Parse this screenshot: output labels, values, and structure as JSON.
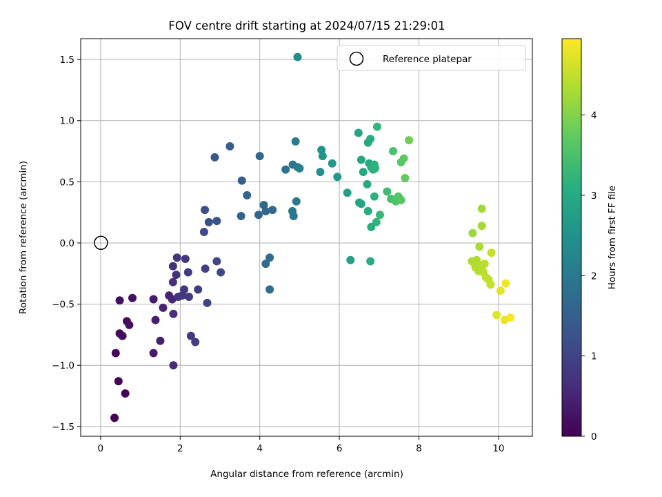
{
  "chart_data": {
    "type": "scatter",
    "title": "FOV centre drift starting at 2024/07/15 21:29:01",
    "xlabel": "Angular distance from reference (arcmin)",
    "ylabel": "Rotation from reference (arcmin)",
    "xlim": [
      -0.5,
      10.85
    ],
    "ylim": [
      -1.58,
      1.67
    ],
    "xticks": [
      0,
      2,
      4,
      6,
      8,
      10
    ],
    "yticks": [
      -1.5,
      -1.0,
      -0.5,
      0.0,
      0.5,
      1.0,
      1.5
    ],
    "xtick_labels": [
      "0",
      "2",
      "4",
      "6",
      "8",
      "10"
    ],
    "ytick_labels": [
      "−1.5",
      "−1.0",
      "−0.5",
      "0.0",
      "0.5",
      "1.0",
      "1.5"
    ],
    "grid": true,
    "legend_position": "top-right",
    "reference": {
      "label": "Reference platepar",
      "x": 0,
      "y": 0
    },
    "colorbar": {
      "label": "Hours from first FF file",
      "colormap": "viridis",
      "range": [
        0,
        4.95
      ],
      "ticks": [
        0,
        1,
        2,
        3,
        4
      ],
      "tick_labels": [
        "0",
        "1",
        "2",
        "3",
        "4"
      ]
    },
    "points": [
      {
        "x": 0.35,
        "y": -1.43,
        "t": 0.02
      },
      {
        "x": 0.62,
        "y": -1.23,
        "t": 0.05
      },
      {
        "x": 0.45,
        "y": -1.13,
        "t": 0.08
      },
      {
        "x": 0.38,
        "y": -0.9,
        "t": 0.1
      },
      {
        "x": 0.48,
        "y": -0.74,
        "t": 0.12
      },
      {
        "x": 0.55,
        "y": -0.76,
        "t": 0.14
      },
      {
        "x": 0.66,
        "y": -0.64,
        "t": 0.16
      },
      {
        "x": 0.72,
        "y": -0.67,
        "t": 0.18
      },
      {
        "x": 0.48,
        "y": -0.47,
        "t": 0.2
      },
      {
        "x": 0.8,
        "y": -0.45,
        "t": 0.24
      },
      {
        "x": 1.33,
        "y": -0.9,
        "t": 0.35
      },
      {
        "x": 1.38,
        "y": -0.63,
        "t": 0.38
      },
      {
        "x": 1.33,
        "y": -0.46,
        "t": 0.4
      },
      {
        "x": 1.5,
        "y": -0.8,
        "t": 0.45
      },
      {
        "x": 1.57,
        "y": -0.53,
        "t": 0.48
      },
      {
        "x": 1.72,
        "y": -0.43,
        "t": 0.52
      },
      {
        "x": 1.8,
        "y": -0.46,
        "t": 0.55
      },
      {
        "x": 1.83,
        "y": -1.0,
        "t": 0.6
      },
      {
        "x": 1.83,
        "y": -0.58,
        "t": 0.62
      },
      {
        "x": 1.82,
        "y": -0.32,
        "t": 0.65
      },
      {
        "x": 1.82,
        "y": -0.19,
        "t": 0.68
      },
      {
        "x": 1.9,
        "y": -0.26,
        "t": 0.7
      },
      {
        "x": 1.92,
        "y": -0.12,
        "t": 0.72
      },
      {
        "x": 1.95,
        "y": -0.44,
        "t": 0.74
      },
      {
        "x": 2.05,
        "y": -0.43,
        "t": 0.78
      },
      {
        "x": 2.1,
        "y": -0.38,
        "t": 0.8
      },
      {
        "x": 2.13,
        "y": -0.13,
        "t": 0.82
      },
      {
        "x": 2.2,
        "y": -0.24,
        "t": 0.84
      },
      {
        "x": 2.22,
        "y": -0.44,
        "t": 0.85
      },
      {
        "x": 2.27,
        "y": -0.76,
        "t": 0.86
      },
      {
        "x": 2.38,
        "y": -0.81,
        "t": 0.88
      },
      {
        "x": 2.45,
        "y": -0.38,
        "t": 0.9
      },
      {
        "x": 2.63,
        "y": -0.21,
        "t": 0.95
      },
      {
        "x": 2.68,
        "y": -0.49,
        "t": 0.98
      },
      {
        "x": 2.92,
        "y": -0.15,
        "t": 1.02
      },
      {
        "x": 3.02,
        "y": -0.24,
        "t": 1.05
      },
      {
        "x": 2.6,
        "y": 0.09,
        "t": 1.1
      },
      {
        "x": 2.62,
        "y": 0.27,
        "t": 1.15
      },
      {
        "x": 2.72,
        "y": 0.17,
        "t": 1.2
      },
      {
        "x": 2.92,
        "y": 0.18,
        "t": 1.25
      },
      {
        "x": 2.87,
        "y": 0.7,
        "t": 1.35
      },
      {
        "x": 3.25,
        "y": 0.79,
        "t": 1.45
      },
      {
        "x": 3.55,
        "y": 0.51,
        "t": 1.5
      },
      {
        "x": 3.53,
        "y": 0.22,
        "t": 1.55
      },
      {
        "x": 3.68,
        "y": 0.39,
        "t": 1.58
      },
      {
        "x": 3.97,
        "y": 0.23,
        "t": 1.6
      },
      {
        "x": 4.1,
        "y": 0.31,
        "t": 1.63
      },
      {
        "x": 4.0,
        "y": 0.71,
        "t": 1.66
      },
      {
        "x": 4.15,
        "y": 0.26,
        "t": 1.68
      },
      {
        "x": 4.32,
        "y": 0.27,
        "t": 1.7
      },
      {
        "x": 4.15,
        "y": -0.17,
        "t": 1.72
      },
      {
        "x": 4.25,
        "y": -0.12,
        "t": 1.74
      },
      {
        "x": 4.25,
        "y": -0.38,
        "t": 1.76
      },
      {
        "x": 4.65,
        "y": 0.6,
        "t": 1.85
      },
      {
        "x": 4.83,
        "y": 0.64,
        "t": 1.9
      },
      {
        "x": 4.82,
        "y": 0.26,
        "t": 1.95
      },
      {
        "x": 4.85,
        "y": 0.22,
        "t": 1.97
      },
      {
        "x": 4.92,
        "y": 0.34,
        "t": 2.0
      },
      {
        "x": 4.9,
        "y": 0.83,
        "t": 2.05
      },
      {
        "x": 4.95,
        "y": 0.62,
        "t": 2.08
      },
      {
        "x": 5.0,
        "y": 0.61,
        "t": 2.1
      },
      {
        "x": 4.95,
        "y": 1.52,
        "t": 2.4
      },
      {
        "x": 5.52,
        "y": 0.58,
        "t": 2.45
      },
      {
        "x": 5.55,
        "y": 0.76,
        "t": 2.5
      },
      {
        "x": 5.58,
        "y": 0.71,
        "t": 2.55
      },
      {
        "x": 5.82,
        "y": 0.65,
        "t": 2.6
      },
      {
        "x": 5.95,
        "y": 0.54,
        "t": 2.65
      },
      {
        "x": 6.2,
        "y": 0.41,
        "t": 2.75
      },
      {
        "x": 6.28,
        "y": -0.14,
        "t": 2.8
      },
      {
        "x": 6.48,
        "y": 0.9,
        "t": 2.85
      },
      {
        "x": 6.5,
        "y": 0.33,
        "t": 2.88
      },
      {
        "x": 6.55,
        "y": 0.32,
        "t": 2.9
      },
      {
        "x": 6.55,
        "y": 0.68,
        "t": 2.92
      },
      {
        "x": 6.6,
        "y": 0.58,
        "t": 2.94
      },
      {
        "x": 6.7,
        "y": 0.48,
        "t": 2.96
      },
      {
        "x": 6.72,
        "y": 0.82,
        "t": 2.98
      },
      {
        "x": 6.75,
        "y": 0.65,
        "t": 3.0
      },
      {
        "x": 6.78,
        "y": 0.85,
        "t": 3.02
      },
      {
        "x": 6.72,
        "y": 0.26,
        "t": 3.04
      },
      {
        "x": 6.78,
        "y": -0.15,
        "t": 3.06
      },
      {
        "x": 6.8,
        "y": 0.13,
        "t": 3.08
      },
      {
        "x": 6.8,
        "y": 0.62,
        "t": 3.1
      },
      {
        "x": 6.85,
        "y": 0.6,
        "t": 3.12
      },
      {
        "x": 6.88,
        "y": 0.38,
        "t": 3.14
      },
      {
        "x": 6.88,
        "y": 0.64,
        "t": 3.16
      },
      {
        "x": 6.9,
        "y": 0.61,
        "t": 3.18
      },
      {
        "x": 6.93,
        "y": 0.17,
        "t": 3.2
      },
      {
        "x": 6.95,
        "y": 0.95,
        "t": 3.25
      },
      {
        "x": 7.02,
        "y": 0.23,
        "t": 3.3
      },
      {
        "x": 7.2,
        "y": 0.42,
        "t": 3.4
      },
      {
        "x": 7.3,
        "y": 0.36,
        "t": 3.45
      },
      {
        "x": 7.35,
        "y": 0.75,
        "t": 3.5
      },
      {
        "x": 7.42,
        "y": 0.34,
        "t": 3.55
      },
      {
        "x": 7.48,
        "y": 0.38,
        "t": 3.58
      },
      {
        "x": 7.52,
        "y": 0.36,
        "t": 3.6
      },
      {
        "x": 7.55,
        "y": 0.35,
        "t": 3.62
      },
      {
        "x": 7.55,
        "y": 0.66,
        "t": 3.65
      },
      {
        "x": 7.62,
        "y": 0.69,
        "t": 3.7
      },
      {
        "x": 7.65,
        "y": 0.53,
        "t": 3.75
      },
      {
        "x": 7.75,
        "y": 0.84,
        "t": 3.85
      },
      {
        "x": 9.35,
        "y": 0.08,
        "t": 4.2
      },
      {
        "x": 9.58,
        "y": 0.28,
        "t": 4.25
      },
      {
        "x": 9.58,
        "y": 0.14,
        "t": 4.28
      },
      {
        "x": 9.52,
        "y": -0.03,
        "t": 4.3
      },
      {
        "x": 9.33,
        "y": -0.15,
        "t": 4.32
      },
      {
        "x": 9.4,
        "y": -0.17,
        "t": 4.34
      },
      {
        "x": 9.45,
        "y": -0.14,
        "t": 4.35
      },
      {
        "x": 9.42,
        "y": -0.2,
        "t": 4.36
      },
      {
        "x": 9.48,
        "y": -0.18,
        "t": 4.37
      },
      {
        "x": 9.5,
        "y": -0.23,
        "t": 4.38
      },
      {
        "x": 9.55,
        "y": -0.21,
        "t": 4.39
      },
      {
        "x": 9.6,
        "y": -0.18,
        "t": 4.4
      },
      {
        "x": 9.62,
        "y": -0.24,
        "t": 4.42
      },
      {
        "x": 9.65,
        "y": -0.17,
        "t": 4.44
      },
      {
        "x": 9.68,
        "y": -0.28,
        "t": 4.46
      },
      {
        "x": 9.75,
        "y": -0.3,
        "t": 4.48
      },
      {
        "x": 9.8,
        "y": -0.34,
        "t": 4.5
      },
      {
        "x": 9.82,
        "y": -0.08,
        "t": 4.52
      },
      {
        "x": 9.95,
        "y": -0.59,
        "t": 4.7
      },
      {
        "x": 10.05,
        "y": -0.39,
        "t": 4.75
      },
      {
        "x": 10.15,
        "y": -0.63,
        "t": 4.8
      },
      {
        "x": 10.18,
        "y": -0.33,
        "t": 4.85
      },
      {
        "x": 10.3,
        "y": -0.61,
        "t": 4.9
      }
    ]
  }
}
